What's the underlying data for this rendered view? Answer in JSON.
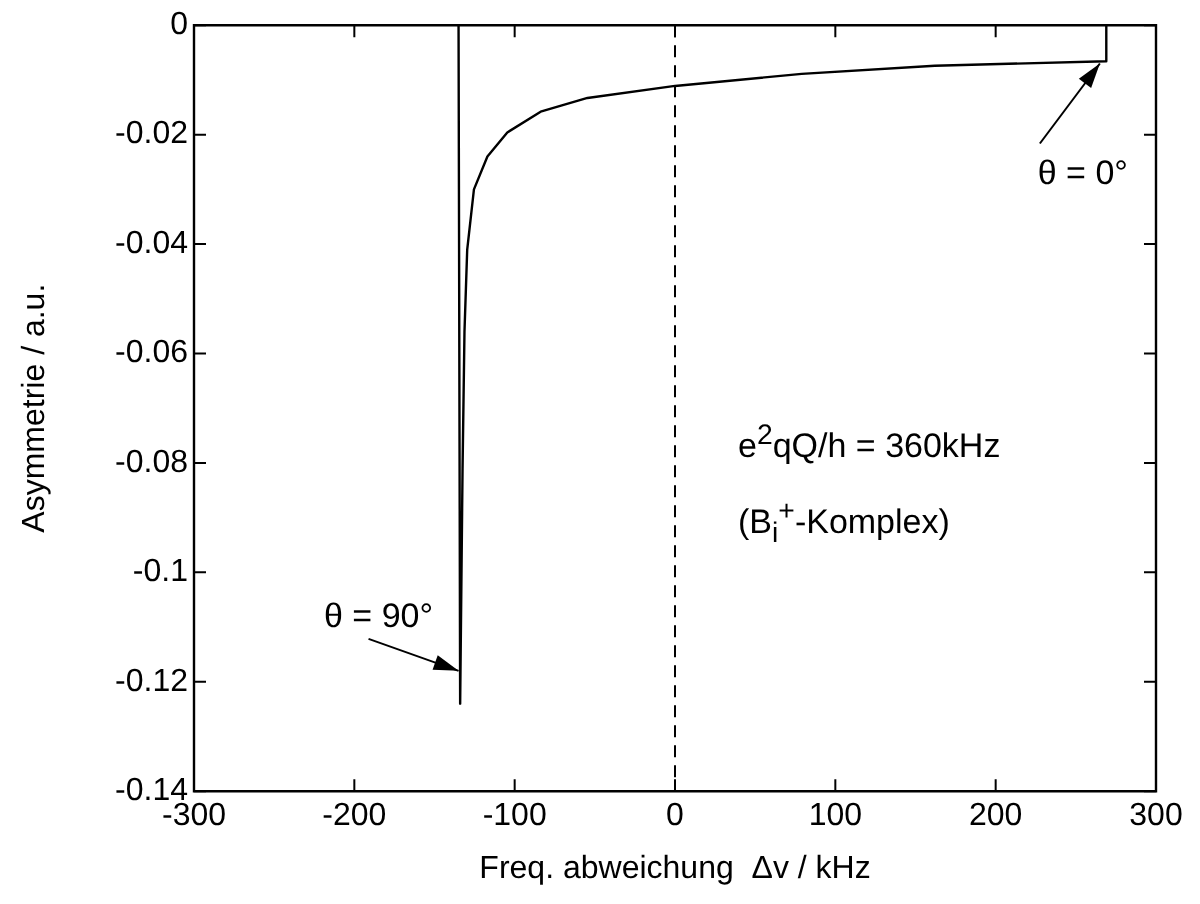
{
  "chart_data": {
    "type": "line",
    "xlabel": "Freq. abweichung  Δv / kHz",
    "ylabel": "Asymmetrie / a.u.",
    "xlim": [
      -300,
      300
    ],
    "xticks": [
      -300,
      -200,
      -100,
      0,
      100,
      200,
      300
    ],
    "ylim": [
      -0.14,
      0
    ],
    "yticks": [
      0,
      -0.02,
      -0.04,
      -0.06,
      -0.08,
      -0.1,
      -0.12,
      -0.14
    ],
    "series": [
      {
        "color": "#000000",
        "x": [
          -135,
          -134,
          -132.5,
          -131.3,
          -129.6,
          -125.4,
          -117,
          -104.6,
          -83.8,
          -54.6,
          0,
          79,
          162,
          269,
          269
        ],
        "values": [
          0,
          -0.124,
          -0.081,
          -0.056,
          -0.041,
          -0.03,
          -0.024,
          -0.0196,
          -0.0158,
          -0.0133,
          -0.0111,
          -0.0089,
          -0.0074,
          -0.0066,
          0
        ]
      }
    ],
    "ref_lines": [
      {
        "axis": "x",
        "value": 0,
        "color": "#000000",
        "line_style": "dashed"
      }
    ],
    "grid": false,
    "legend": false,
    "marker": "none",
    "line_style": "solid",
    "annotations": [
      {
        "text": "θ = 90°",
        "x": -135,
        "y": -0.118
      },
      {
        "text": "θ = 0°",
        "x": 265,
        "y": -0.007
      },
      "e$^{2}$qQ/h = 360kHz",
      "(B$_{i}$$^{+}$-Komplex)"
    ]
  }
}
